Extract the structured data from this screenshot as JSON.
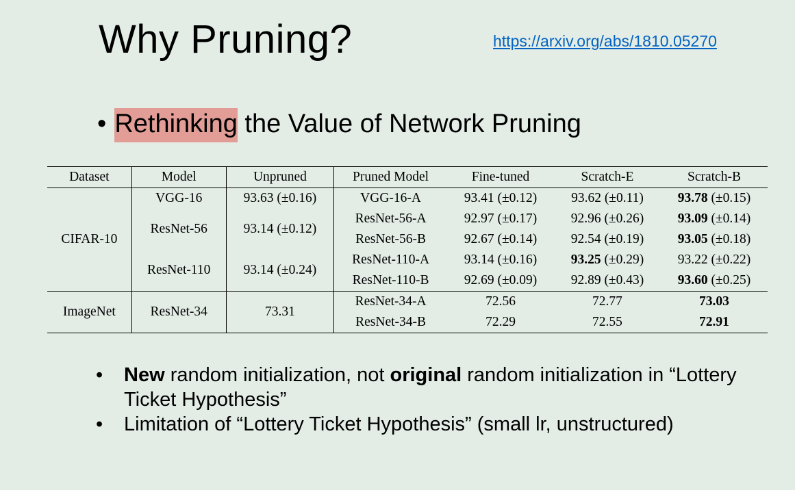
{
  "slide": {
    "title": "Why Pruning?",
    "link": "https://arxiv.org/abs/1810.05270",
    "main_bullet": {
      "dot": "•",
      "highlighted": "Rethinking",
      "rest": " the Value of Network Pruning"
    }
  },
  "table": {
    "headers": [
      "Dataset",
      "Model",
      "Unpruned",
      "Pruned Model",
      "Fine-tuned",
      "Scratch-E",
      "Scratch-B"
    ],
    "datasets": [
      "CIFAR-10",
      "ImageNet"
    ],
    "models": [
      "VGG-16",
      "ResNet-56",
      "ResNet-110",
      "ResNet-34"
    ],
    "unpruned": [
      "93.63 (±0.16)",
      "93.14 (±0.12)",
      "93.14 (±0.24)",
      "73.31"
    ],
    "rows": [
      {
        "pruned": "VGG-16-A",
        "finetuned": "93.41 (±0.12)",
        "scratch_e_bold": "",
        "scratch_e_rest": "93.62 (±0.11)",
        "scratch_b_bold": "93.78",
        "scratch_b_rest": " (±0.15)"
      },
      {
        "pruned": "ResNet-56-A",
        "finetuned": "92.97 (±0.17)",
        "scratch_e_bold": "",
        "scratch_e_rest": "92.96 (±0.26)",
        "scratch_b_bold": "93.09",
        "scratch_b_rest": " (±0.14)"
      },
      {
        "pruned": "ResNet-56-B",
        "finetuned": "92.67 (±0.14)",
        "scratch_e_bold": "",
        "scratch_e_rest": "92.54 (±0.19)",
        "scratch_b_bold": "93.05",
        "scratch_b_rest": " (±0.18)"
      },
      {
        "pruned": "ResNet-110-A",
        "finetuned": "93.14 (±0.16)",
        "scratch_e_bold": "93.25",
        "scratch_e_rest": " (±0.29)",
        "scratch_b_bold": "",
        "scratch_b_rest": "93.22 (±0.22)"
      },
      {
        "pruned": "ResNet-110-B",
        "finetuned": "92.69 (±0.09)",
        "scratch_e_bold": "",
        "scratch_e_rest": "92.89 (±0.43)",
        "scratch_b_bold": "93.60",
        "scratch_b_rest": " (±0.25)"
      },
      {
        "pruned": "ResNet-34-A",
        "finetuned": "72.56",
        "scratch_e_bold": "",
        "scratch_e_rest": "72.77",
        "scratch_b_bold": "73.03",
        "scratch_b_rest": ""
      },
      {
        "pruned": "ResNet-34-B",
        "finetuned": "72.29",
        "scratch_e_bold": "",
        "scratch_e_rest": "72.55",
        "scratch_b_bold": "72.91",
        "scratch_b_rest": ""
      }
    ]
  },
  "bullets": {
    "dot": "•",
    "b1": {
      "bold1": "New",
      "text1": " random initialization, not ",
      "bold2": "original",
      "text2": " random initialization in “Lottery Ticket Hypothesis”"
    },
    "b2": {
      "text": "Limitation of “Lottery Ticket Hypothesis” (small lr, unstructured)"
    }
  }
}
